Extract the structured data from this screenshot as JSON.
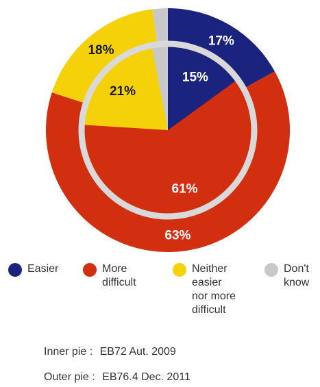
{
  "chart_data": {
    "type": "pie",
    "categories": [
      "Easier",
      "More difficult",
      "Neither easier nor more difficult",
      "Don't know"
    ],
    "series": [
      {
        "name": "EB72 Aut. 2009",
        "ring": "inner",
        "values": [
          15,
          61,
          21,
          3
        ]
      },
      {
        "name": "EB76.4 Dec. 2011",
        "ring": "outer",
        "values": [
          17,
          63,
          18,
          2
        ]
      }
    ],
    "colors": [
      "#1a237e",
      "#d22e10",
      "#f5d10a",
      "#c8c8c8"
    ],
    "ring_separator_color": "#d9d9d9",
    "legend_position": "bottom",
    "data_labels": {
      "inner": [
        "15%",
        "61%",
        "21%",
        ""
      ],
      "outer": [
        "17%",
        "63%",
        "18%",
        ""
      ]
    }
  },
  "legend": [
    {
      "label": "Easier",
      "color": "#1a237e"
    },
    {
      "label": "More\ndifficult",
      "color": "#d22e10"
    },
    {
      "label": "Neither\neasier\nnor more\ndifficult",
      "color": "#f5d10a"
    },
    {
      "label": "Don't\nknow",
      "color": "#c8c8c8"
    }
  ],
  "notes": {
    "inner_key": "Inner pie :",
    "inner_value": "EB72 Aut. 2009",
    "outer_key": "Outer pie :",
    "outer_value": "EB76.4 Dec. 2011"
  }
}
